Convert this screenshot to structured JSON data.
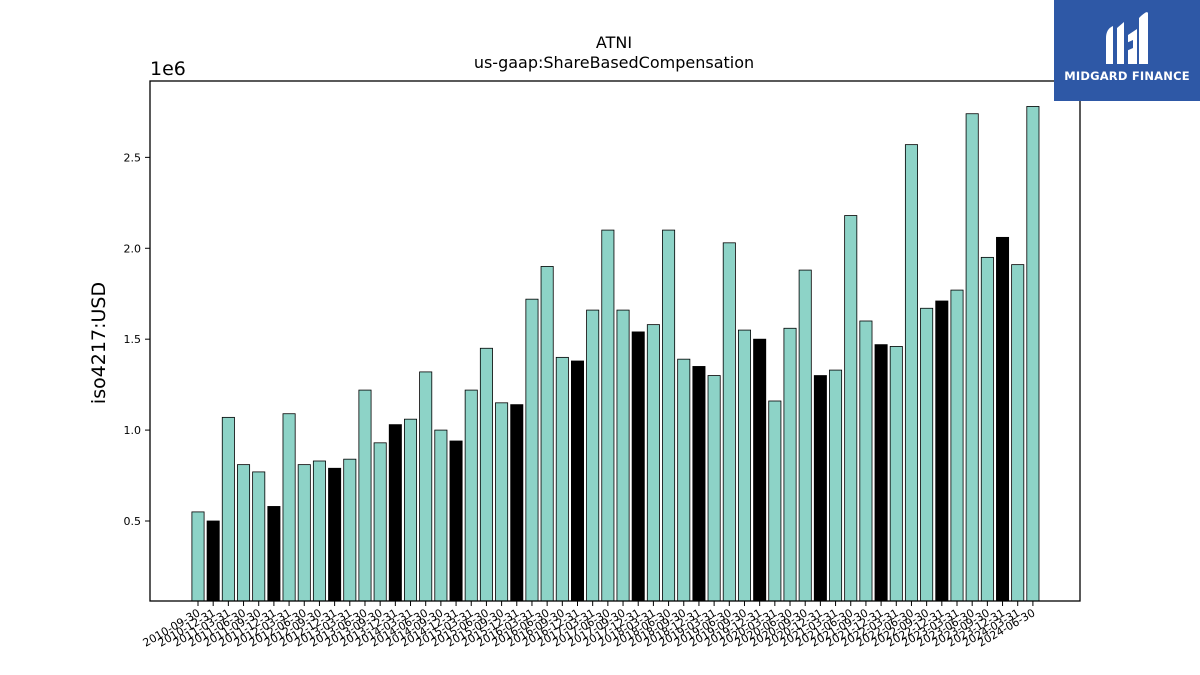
{
  "brand": {
    "name": "MIDGARD FINANCE",
    "background_color": "#2e58a6"
  },
  "chart_data": {
    "type": "bar",
    "title": "ATNI",
    "subtitle": "us-gaap:ShareBasedCompensation",
    "ylabel": "iso4217:USD",
    "xlabel": "",
    "y_offset_label": "1e6",
    "ylim": [
      0.06,
      2.92
    ],
    "yticks": [
      0.5,
      1.0,
      1.5,
      2.0,
      2.5
    ],
    "ytick_labels": [
      "0.5",
      "1.0",
      "1.5",
      "2.0",
      "2.5"
    ],
    "grid": false,
    "colors": {
      "quarterly": "#8dd3c7",
      "annual": "#000000",
      "edge": "#000000"
    },
    "categories": [
      "2010-09-30",
      "2010-12-31",
      "2011-03-31",
      "2011-06-30",
      "2011-09-30",
      "2011-12-31",
      "2012-03-31",
      "2012-06-30",
      "2012-09-30",
      "2012-12-31",
      "2013-03-31",
      "2013-06-30",
      "2013-09-30",
      "2013-12-31",
      "2014-03-31",
      "2014-06-30",
      "2014-09-30",
      "2014-12-31",
      "2015-03-31",
      "2015-06-30",
      "2015-09-30",
      "2015-12-31",
      "2016-03-31",
      "2016-06-30",
      "2016-09-30",
      "2016-12-31",
      "2017-03-31",
      "2017-06-30",
      "2017-09-30",
      "2017-12-31",
      "2018-03-31",
      "2018-06-30",
      "2018-09-30",
      "2018-12-31",
      "2019-03-31",
      "2019-06-30",
      "2019-09-30",
      "2019-12-31",
      "2020-03-31",
      "2020-06-30",
      "2020-09-30",
      "2020-12-31",
      "2021-03-31",
      "2021-06-30",
      "2021-09-30",
      "2021-12-31",
      "2022-03-31",
      "2022-06-30",
      "2022-09-30",
      "2022-12-31",
      "2023-03-31",
      "2023-06-30",
      "2023-09-30",
      "2023-12-31",
      "2024-03-31",
      "2024-06-30"
    ],
    "values": [
      0.55,
      0.5,
      1.07,
      0.81,
      0.77,
      0.58,
      1.09,
      0.81,
      0.83,
      0.79,
      0.84,
      1.22,
      0.93,
      1.03,
      1.06,
      1.32,
      1.0,
      0.94,
      1.22,
      1.45,
      1.15,
      1.14,
      1.72,
      1.9,
      1.4,
      1.38,
      1.66,
      2.1,
      1.66,
      1.54,
      1.58,
      2.1,
      1.39,
      1.35,
      1.3,
      2.03,
      1.55,
      1.5,
      1.16,
      1.56,
      1.88,
      1.3,
      1.33,
      2.18,
      1.6,
      1.47,
      1.46,
      2.57,
      1.67,
      1.71,
      1.77,
      2.74,
      1.95,
      2.06,
      1.91,
      2.78
    ],
    "annual_flags": [
      0,
      1,
      0,
      0,
      0,
      1,
      0,
      0,
      0,
      1,
      0,
      0,
      0,
      1,
      0,
      0,
      0,
      1,
      0,
      0,
      0,
      1,
      0,
      0,
      0,
      1,
      0,
      0,
      0,
      1,
      0,
      0,
      0,
      1,
      0,
      0,
      0,
      1,
      0,
      0,
      0,
      1,
      0,
      0,
      0,
      1,
      0,
      0,
      0,
      1,
      0,
      0,
      0,
      1,
      0,
      0
    ]
  }
}
